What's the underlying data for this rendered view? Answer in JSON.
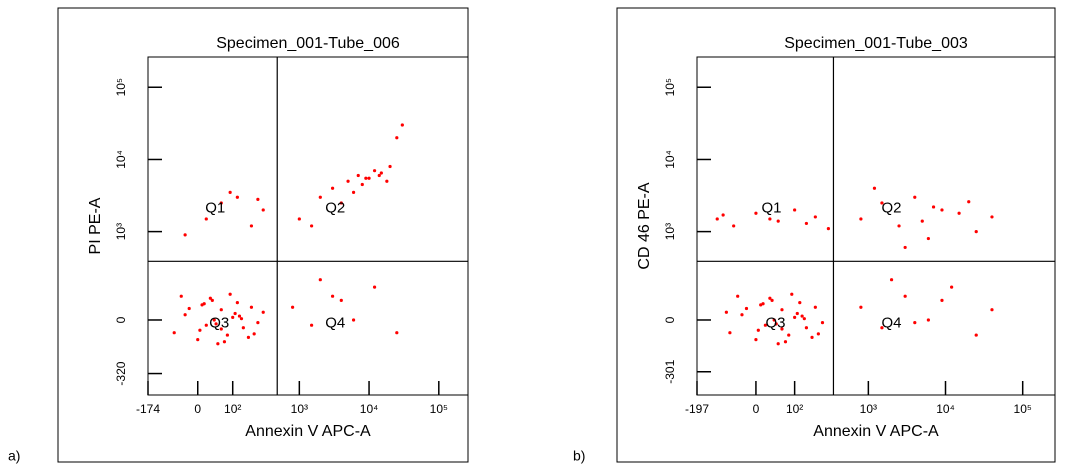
{
  "chart_data": [
    {
      "type": "scatter",
      "panel_label": "a)",
      "title": "Specimen_001-Tube_006",
      "x_label": "Annexin V APC-A",
      "y_label": "PI PE-A",
      "color": "#ff0000",
      "xlim": [
        -174,
        262144
      ],
      "ylim": [
        -650,
        262144
      ],
      "xticks": [
        -174,
        0,
        {
          "value": 100,
          "label": "10²"
        },
        {
          "value": 1000,
          "label": "10³"
        },
        {
          "value": 10000,
          "label": "10⁴"
        },
        {
          "value": 100000,
          "label": "10⁵"
        }
      ],
      "yticks": [
        -320,
        0,
        {
          "value": 1000,
          "label": "10³"
        },
        {
          "value": 10000,
          "label": "10⁴"
        },
        {
          "value": 100000,
          "label": "10⁵"
        }
      ],
      "gates": {
        "x": 480,
        "y": 380
      },
      "quadrant_labels": [
        "Q1",
        "Q2",
        "Q3",
        "Q4"
      ],
      "x": [
        -60,
        -30,
        0,
        10,
        20,
        30,
        40,
        50,
        60,
        80,
        100,
        120,
        150,
        200,
        250,
        300,
        -40,
        5,
        35,
        70,
        110,
        180,
        -20,
        45,
        90,
        140,
        220,
        15,
        60,
        130,
        20,
        60,
        120,
        200,
        300,
        -30,
        90,
        250,
        1000,
        2000,
        3000,
        5000,
        7000,
        9000,
        12000,
        15000,
        20000,
        25000,
        4000,
        8000,
        6000,
        10000,
        14000,
        18000,
        1500,
        30000,
        800,
        1500,
        3000,
        6000,
        12000,
        25000,
        2000,
        4000
      ],
      "y": [
        -50,
        20,
        -80,
        60,
        -20,
        90,
        0,
        -100,
        40,
        -60,
        10,
        70,
        -30,
        50,
        -10,
        30,
        100,
        -40,
        80,
        -90,
        25,
        -70,
        45,
        -15,
        110,
        5,
        -55,
        65,
        -35,
        15,
        1500,
        2500,
        3000,
        1200,
        2000,
        900,
        3500,
        2800,
        1500,
        3000,
        4000,
        5000,
        6000,
        5500,
        7000,
        6500,
        8000,
        20000,
        2500,
        4500,
        3500,
        5500,
        6000,
        5000,
        1200,
        30000,
        50,
        -20,
        100,
        0,
        150,
        -50,
        200,
        80
      ]
    },
    {
      "type": "scatter",
      "panel_label": "b)",
      "title": "Specimen_001-Tube_003",
      "x_label": "Annexin V APC-A",
      "y_label": "CD 46 PE-A",
      "color": "#ff0000",
      "xlim": [
        -197,
        262144
      ],
      "ylim": [
        -650,
        262144
      ],
      "xticks": [
        -197,
        0,
        {
          "value": 100,
          "label": "10²"
        },
        {
          "value": 1000,
          "label": "10³"
        },
        {
          "value": 10000,
          "label": "10⁴"
        },
        {
          "value": 100000,
          "label": "10⁵"
        }
      ],
      "yticks": [
        -301,
        0,
        {
          "value": 1000,
          "label": "10³"
        },
        {
          "value": 10000,
          "label": "10⁴"
        },
        {
          "value": 100000,
          "label": "10⁵"
        }
      ],
      "gates": {
        "x": 350,
        "y": 380
      },
      "quadrant_labels": [
        "Q1",
        "Q2",
        "Q3",
        "Q4"
      ],
      "x": [
        -60,
        -30,
        0,
        10,
        20,
        30,
        40,
        50,
        60,
        80,
        100,
        120,
        150,
        200,
        250,
        -40,
        5,
        35,
        70,
        110,
        180,
        -20,
        45,
        90,
        140,
        220,
        15,
        60,
        130,
        -70,
        -100,
        -50,
        0,
        50,
        100,
        150,
        200,
        300,
        -80,
        30,
        800,
        1500,
        2500,
        4000,
        6000,
        9000,
        15000,
        25000,
        40000,
        1200,
        3000,
        7000,
        20000,
        5000,
        800,
        1500,
        3000,
        6000,
        12000,
        25000,
        40000,
        2000,
        4000,
        9000
      ],
      "y": [
        -50,
        20,
        -80,
        60,
        -20,
        90,
        0,
        -100,
        40,
        -60,
        10,
        70,
        -30,
        50,
        -10,
        100,
        -40,
        80,
        -90,
        25,
        -70,
        45,
        -15,
        110,
        5,
        -55,
        65,
        -35,
        15,
        30,
        1500,
        1200,
        1800,
        1400,
        2000,
        1300,
        1600,
        1100,
        1700,
        1500,
        1500,
        2500,
        1200,
        3000,
        800,
        2000,
        1800,
        1000,
        1600,
        4000,
        600,
        2200,
        2600,
        1400,
        50,
        -30,
        100,
        0,
        150,
        -60,
        40,
        200,
        -10,
        80
      ]
    }
  ]
}
